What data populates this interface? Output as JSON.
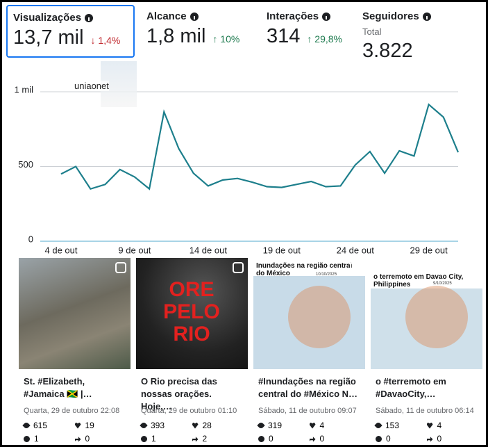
{
  "metrics": [
    {
      "label": "Visualizações",
      "value": "13,7 mil",
      "change": "↓ 1,4%",
      "trend": "down"
    },
    {
      "label": "Alcance",
      "value": "1,8 mil",
      "change": "↑ 10%",
      "trend": "up"
    },
    {
      "label": "Interações",
      "value": "314",
      "change": "↑ 29,8%",
      "trend": "up"
    },
    {
      "label": "Seguidores",
      "sublabel": "Total",
      "value": "3.822"
    }
  ],
  "watermark": "uniaonet",
  "chart_data": {
    "type": "line",
    "color": "#1d7f8c",
    "categories": [
      "4 de out",
      null,
      null,
      null,
      null,
      "9 de out",
      null,
      null,
      null,
      null,
      "14 de out",
      null,
      null,
      null,
      null,
      "19 de out",
      null,
      null,
      null,
      null,
      "24 de out",
      null,
      null,
      null,
      null,
      "29 de out",
      null,
      null
    ],
    "values": [
      450,
      500,
      350,
      380,
      480,
      430,
      350,
      865,
      620,
      455,
      370,
      410,
      420,
      395,
      365,
      360,
      380,
      400,
      365,
      370,
      510,
      600,
      455,
      605,
      570,
      915,
      830,
      595
    ],
    "ylim": [
      0,
      1000
    ],
    "yticks": [
      0,
      500,
      {
        "value": 1000,
        "label": "1 mil"
      }
    ],
    "grid": true
  },
  "posts": [
    {
      "caption": "St. #Elizabeth, #Jamaica 🇯🇲 |…",
      "date": "Quarta, 29 de outubro 22:08",
      "views": 615,
      "likes": 19,
      "comments": 1,
      "shares": 0
    },
    {
      "image_text": "ORE PELO RIO",
      "caption": "O Rio precisa das nossas orações. Hoje,…",
      "date": "Quarta, 29 de outubro 01:10",
      "views": 393,
      "likes": 28,
      "comments": 1,
      "shares": 2
    },
    {
      "image_text": "Inundações na região central do México",
      "image_date": "10/10/2025",
      "caption": "#Inundações na região central do #México N…",
      "date": "Sábado, 11 de outubro 09:07",
      "views": 319,
      "likes": 4,
      "comments": 0,
      "shares": 0
    },
    {
      "image_text": "o terremoto em Davao City, Philippines",
      "image_date": "9/10/2025",
      "caption": "o #terremoto em #DavaoCity,…",
      "date": "Sábado, 11 de outubro 06:14",
      "views": 153,
      "likes": 4,
      "comments": 0,
      "shares": 0
    }
  ]
}
